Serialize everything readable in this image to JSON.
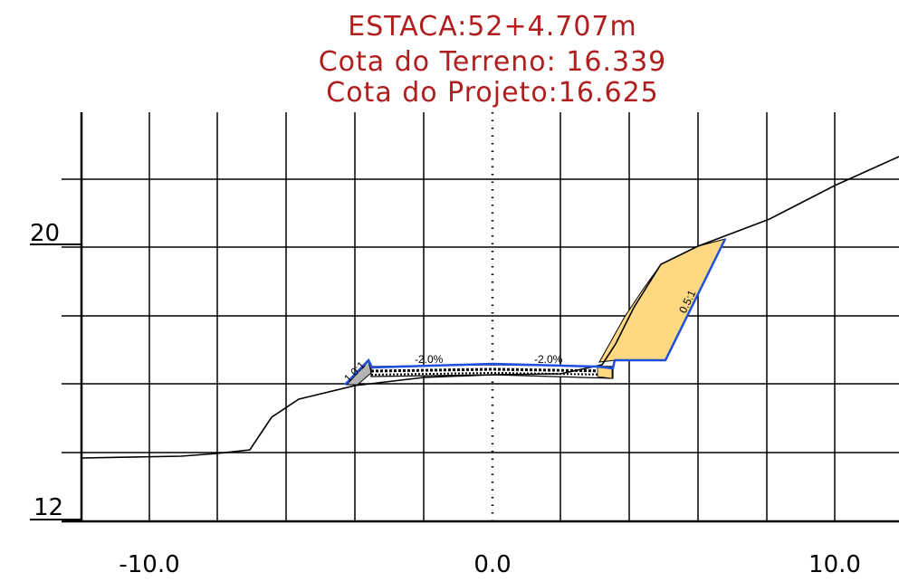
{
  "header": {
    "station": "ESTACA:52+4.707m",
    "ground_elevation": "Cota do Terreno: 16.339",
    "design_elevation": "Cota do Projeto:16.625"
  },
  "axes": {
    "y_label_top": "20",
    "y_label_bottom": "12",
    "x_labels": [
      "-10.0",
      "0.0",
      "10.0"
    ]
  },
  "annotations": {
    "left_slope": "1.0:1",
    "left_crossfall": "-2.0%",
    "right_crossfall": "-2.0%",
    "right_slope": "0.5:1"
  },
  "colors": {
    "title": "#b01e1e",
    "design_line": "#1f4fe0",
    "cut_fill": "#ffd982",
    "fill_area": "#b4b4b4",
    "terrain": "#000000"
  },
  "chart_data": {
    "type": "cross-section",
    "x_unit": "m (offset from centerline)",
    "y_unit": "m (elevation)",
    "xlim": [
      -12.0,
      12.0
    ],
    "ylim": [
      12,
      22
    ],
    "x_grid_step": 2,
    "y_grid_step": 2,
    "terrain": [
      [
        -12.0,
        13.87
      ],
      [
        -9.0,
        13.9
      ],
      [
        -7.0,
        14.04
      ],
      [
        -6.4,
        15.1
      ],
      [
        -5.6,
        15.75
      ],
      [
        -4.0,
        16.05
      ],
      [
        -2.0,
        16.28
      ],
      [
        0.0,
        16.35
      ],
      [
        2.0,
        16.42
      ],
      [
        3.2,
        16.5
      ],
      [
        4.0,
        17.3
      ],
      [
        4.5,
        18.3
      ],
      [
        5.0,
        19.1
      ],
      [
        6.0,
        19.55
      ],
      [
        8.0,
        20.3
      ],
      [
        10.0,
        21.3
      ],
      [
        12.0,
        22.0
      ]
    ],
    "design_line": [
      [
        -4.3,
        16.0
      ],
      [
        -3.6,
        16.65
      ],
      [
        -3.45,
        16.52
      ],
      [
        0.0,
        16.6
      ],
      [
        3.5,
        16.52
      ],
      [
        3.55,
        16.68
      ],
      [
        5.0,
        16.7
      ],
      [
        6.9,
        20.3
      ]
    ]
  }
}
